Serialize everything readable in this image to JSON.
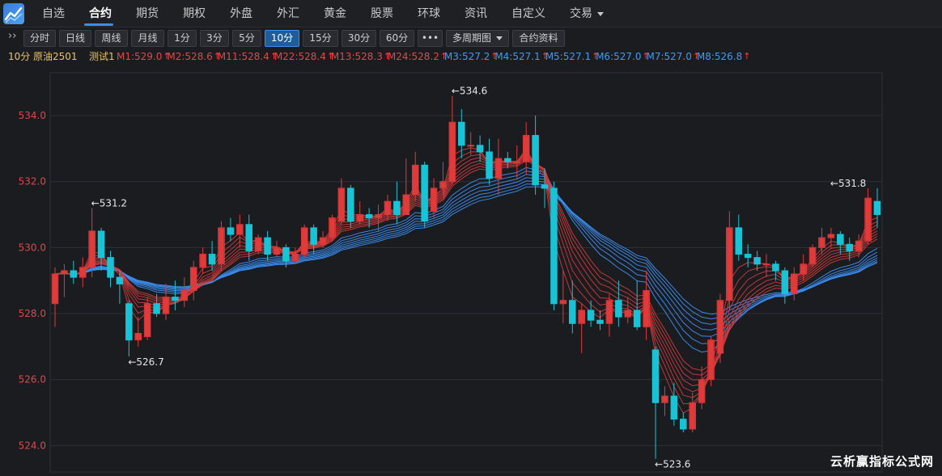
{
  "nav": {
    "items": [
      "自选",
      "合约",
      "期货",
      "期权",
      "外盘",
      "外汇",
      "黄金",
      "股票",
      "环球",
      "资讯",
      "自定义",
      "交易"
    ],
    "active_index": 1
  },
  "toolbar": {
    "expand_label": "››",
    "periods": [
      "分时",
      "日线",
      "周线",
      "月线",
      "1分",
      "3分",
      "5分",
      "10分",
      "15分",
      "30分",
      "60分",
      "•••",
      "多周期图",
      "合约资料"
    ],
    "active_period": "10分"
  },
  "indicator_bar": {
    "period_label": "10分",
    "contract": "原油2501",
    "study_name": "测试1",
    "red_lines": [
      {
        "name": "M1",
        "value": "529.0"
      },
      {
        "name": "M2",
        "value": "528.6"
      },
      {
        "name": "M11",
        "value": "528.4"
      },
      {
        "name": "M22",
        "value": "528.4"
      },
      {
        "name": "M13",
        "value": "528.3"
      },
      {
        "name": "M24",
        "value": "528.2"
      }
    ],
    "blue_lines": [
      {
        "name": "M3",
        "value": "527.2"
      },
      {
        "name": "M4",
        "value": "527.1"
      },
      {
        "name": "M5",
        "value": "527.1"
      },
      {
        "name": "M6",
        "value": "527.0"
      },
      {
        "name": "M7",
        "value": "527.0"
      }
    ],
    "last_line": {
      "name": "M8",
      "value": "526.8"
    }
  },
  "colors": {
    "up": "#e03a3a",
    "down": "#19c3d6",
    "red_ma": "#d43b3b",
    "blue_ma": "#3a8ef0",
    "grid": "#2e3036",
    "axis_text": "#d84a4a"
  },
  "chart_data": {
    "type": "candlestick",
    "ylim": [
      523.2,
      535.3
    ],
    "yticks": [
      524.0,
      526.0,
      528.0,
      530.0,
      532.0,
      534.0
    ],
    "ytick_labels": [
      "524.0",
      "526.0",
      "528.0",
      "530.0",
      "532.0",
      "534.0"
    ],
    "annotations": [
      {
        "text": "←531.2",
        "bar": 4,
        "price": 531.2,
        "pos": "above"
      },
      {
        "text": "←526.7",
        "bar": 8,
        "price": 526.7,
        "pos": "below"
      },
      {
        "text": "←534.6",
        "bar": 43,
        "price": 534.6,
        "pos": "above"
      },
      {
        "text": "←523.6",
        "bar": 65,
        "price": 523.6,
        "pos": "below"
      },
      {
        "text": "←531.8",
        "bar": 84,
        "price": 531.8,
        "pos": "above"
      }
    ],
    "candles": [
      [
        528.3,
        529.2,
        527.6,
        529.4
      ],
      [
        529.2,
        529.3,
        528.5,
        529.5
      ],
      [
        529.3,
        529.1,
        528.9,
        529.6
      ],
      [
        529.1,
        529.4,
        528.8,
        529.7
      ],
      [
        529.4,
        530.5,
        529.1,
        531.2
      ],
      [
        530.5,
        529.7,
        529.3,
        530.6
      ],
      [
        529.7,
        529.1,
        528.8,
        529.9
      ],
      [
        529.1,
        528.9,
        528.3,
        529.3
      ],
      [
        528.3,
        527.2,
        526.7,
        528.4
      ],
      [
        527.2,
        527.4,
        527.0,
        527.9
      ],
      [
        527.3,
        528.3,
        527.2,
        528.5
      ],
      [
        528.3,
        528.0,
        527.9,
        528.6
      ],
      [
        528.0,
        528.5,
        527.8,
        528.9
      ],
      [
        528.5,
        528.4,
        528.1,
        529.0
      ],
      [
        528.4,
        528.7,
        528.2,
        529.1
      ],
      [
        528.7,
        529.4,
        528.4,
        529.6
      ],
      [
        529.4,
        529.8,
        529.2,
        530.0
      ],
      [
        529.8,
        529.5,
        529.3,
        530.2
      ],
      [
        529.5,
        530.6,
        529.3,
        530.8
      ],
      [
        530.6,
        530.4,
        530.2,
        530.9
      ],
      [
        530.4,
        530.7,
        530.0,
        531.0
      ],
      [
        530.7,
        529.9,
        529.6,
        531.0
      ],
      [
        529.9,
        530.3,
        529.8,
        530.4
      ],
      [
        530.3,
        529.8,
        529.6,
        530.5
      ],
      [
        529.8,
        530.0,
        529.7,
        530.2
      ],
      [
        530.0,
        529.6,
        529.4,
        530.1
      ],
      [
        529.6,
        529.8,
        529.5,
        530.0
      ],
      [
        529.8,
        530.6,
        529.7,
        530.7
      ],
      [
        530.6,
        530.1,
        529.8,
        530.7
      ],
      [
        530.1,
        530.3,
        530.0,
        530.5
      ],
      [
        530.3,
        530.9,
        530.2,
        531.0
      ],
      [
        530.8,
        531.8,
        530.7,
        532.1
      ],
      [
        531.8,
        530.8,
        530.6,
        531.9
      ],
      [
        530.8,
        531.0,
        530.7,
        531.4
      ],
      [
        531.0,
        530.9,
        530.6,
        531.2
      ],
      [
        530.9,
        531.0,
        530.5,
        531.3
      ],
      [
        531.0,
        531.4,
        530.8,
        531.6
      ],
      [
        531.4,
        531.0,
        530.7,
        532.0
      ],
      [
        531.0,
        531.6,
        531.0,
        532.7
      ],
      [
        531.6,
        532.5,
        531.4,
        532.9
      ],
      [
        532.5,
        530.8,
        530.6,
        532.6
      ],
      [
        531.1,
        531.8,
        530.9,
        532.1
      ],
      [
        531.8,
        532.0,
        531.6,
        532.6
      ],
      [
        532.0,
        533.8,
        531.9,
        534.6
      ],
      [
        533.8,
        533.1,
        532.7,
        534.2
      ],
      [
        533.1,
        533.1,
        532.8,
        533.5
      ],
      [
        533.1,
        532.9,
        532.6,
        533.4
      ],
      [
        532.9,
        532.1,
        531.9,
        533.3
      ],
      [
        532.1,
        532.7,
        531.6,
        533.3
      ],
      [
        532.7,
        532.6,
        532.4,
        532.9
      ],
      [
        532.6,
        532.6,
        532.1,
        533.1
      ],
      [
        532.6,
        533.4,
        532.2,
        533.8
      ],
      [
        533.4,
        531.9,
        531.6,
        534.0
      ],
      [
        531.9,
        531.8,
        531.2,
        532.4
      ],
      [
        531.8,
        528.3,
        528.1,
        532.0
      ],
      [
        528.3,
        528.4,
        527.7,
        529.3
      ],
      [
        528.4,
        527.7,
        527.4,
        529.0
      ],
      [
        527.7,
        528.1,
        526.8,
        528.3
      ],
      [
        528.1,
        527.8,
        527.6,
        528.4
      ],
      [
        527.8,
        527.7,
        527.5,
        528.1
      ],
      [
        527.7,
        528.4,
        527.3,
        528.6
      ],
      [
        528.4,
        527.9,
        527.6,
        529.0
      ],
      [
        527.9,
        528.1,
        527.7,
        528.5
      ],
      [
        528.1,
        527.6,
        527.5,
        529.0
      ],
      [
        527.6,
        528.7,
        527.2,
        529.3
      ],
      [
        526.9,
        525.3,
        523.6,
        527.0
      ],
      [
        525.3,
        525.5,
        524.9,
        525.8
      ],
      [
        525.5,
        524.8,
        524.6,
        525.9
      ],
      [
        524.8,
        524.5,
        524.4,
        525.0
      ],
      [
        524.5,
        525.3,
        524.4,
        525.6
      ],
      [
        525.3,
        526.0,
        525.1,
        526.4
      ],
      [
        526.0,
        527.2,
        525.8,
        527.3
      ],
      [
        526.8,
        528.4,
        526.5,
        528.6
      ],
      [
        528.4,
        530.6,
        528.1,
        531.1
      ],
      [
        530.6,
        529.8,
        529.6,
        531.0
      ],
      [
        529.8,
        529.7,
        529.4,
        530.1
      ],
      [
        529.7,
        529.5,
        529.3,
        529.9
      ],
      [
        529.5,
        529.5,
        529.1,
        529.8
      ],
      [
        529.5,
        529.3,
        529.0,
        529.6
      ],
      [
        529.3,
        528.6,
        528.3,
        529.4
      ],
      [
        528.6,
        529.2,
        528.4,
        529.4
      ],
      [
        529.2,
        529.5,
        529.0,
        529.8
      ],
      [
        529.5,
        530.0,
        529.4,
        530.1
      ],
      [
        530.0,
        530.3,
        529.8,
        530.6
      ],
      [
        530.3,
        530.4,
        530.0,
        530.6
      ],
      [
        530.4,
        530.1,
        529.8,
        530.5
      ],
      [
        530.1,
        529.9,
        529.6,
        530.3
      ],
      [
        529.9,
        530.2,
        529.7,
        530.4
      ],
      [
        530.2,
        531.5,
        530.1,
        531.8
      ],
      [
        531.4,
        531.0,
        530.6,
        531.8
      ]
    ]
  },
  "watermark": "云析赢指标公式网"
}
